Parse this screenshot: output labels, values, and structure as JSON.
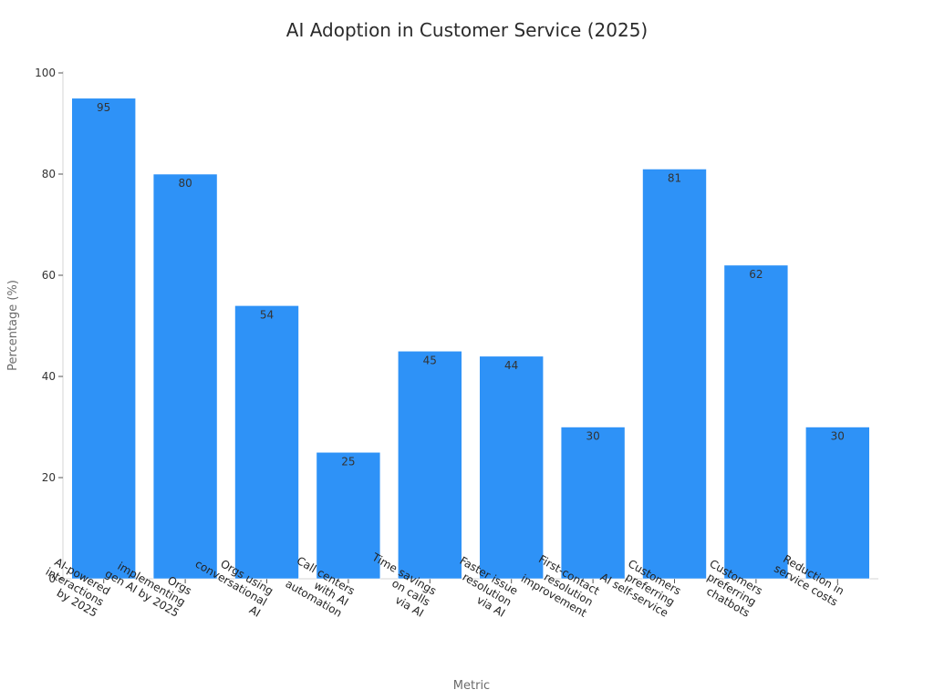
{
  "chart_data": {
    "type": "bar",
    "title": "AI Adoption in Customer Service (2025)",
    "xlabel": "Metric",
    "ylabel": "Percentage (%)",
    "ylim": [
      0,
      100
    ],
    "yticks": [
      0,
      20,
      40,
      60,
      80,
      100
    ],
    "grid": false,
    "bar_color": "#2e92f7",
    "categories": [
      [
        "AI-powered",
        "interactions",
        "by 2025"
      ],
      [
        "Orgs",
        "implementing",
        "gen AI by 2025"
      ],
      [
        "Orgs using",
        "conversational",
        "AI"
      ],
      [
        "Call centers",
        "with AI",
        "automation"
      ],
      [
        "Time savings",
        "on calls",
        "via AI"
      ],
      [
        "Faster issue",
        "resolution",
        "via AI"
      ],
      [
        "First-contact",
        "resolution",
        "improvement"
      ],
      [
        "Customers",
        "preferring",
        "AI self-service"
      ],
      [
        "Customers",
        "preferring",
        "chatbots"
      ],
      [
        "Reduction in",
        "service costs"
      ]
    ],
    "values": [
      95,
      80,
      54,
      25,
      45,
      44,
      30,
      81,
      62,
      30
    ]
  }
}
